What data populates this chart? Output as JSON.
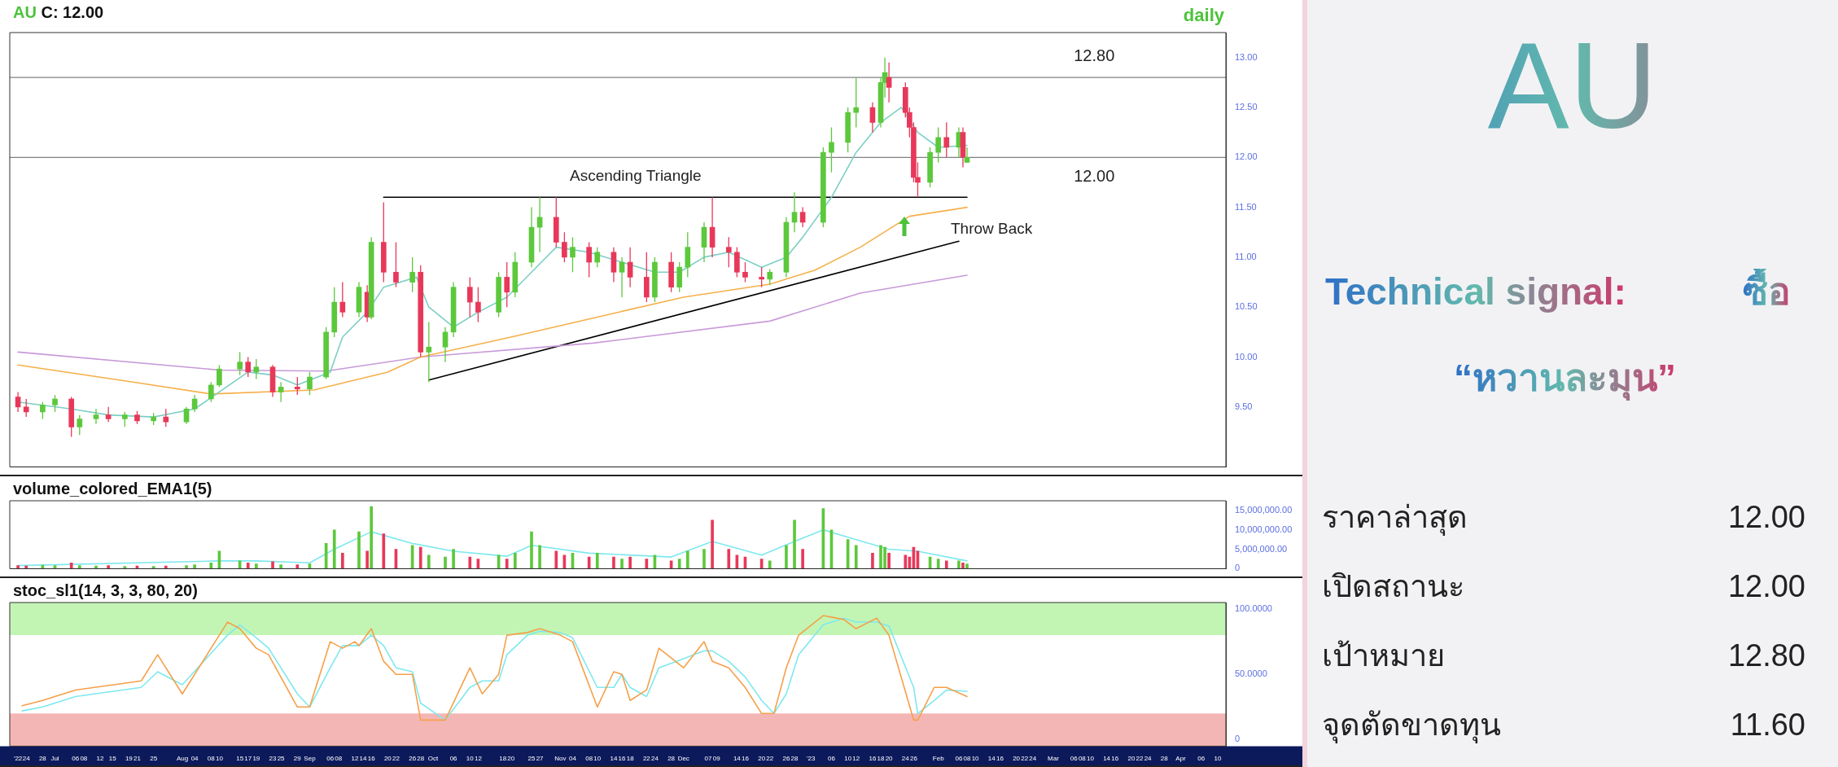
{
  "chart_data": [
    {
      "type": "candlestick",
      "title": "AU C: 12.00",
      "annotations": [
        "daily",
        "Ascending Triangle",
        "Throw Back"
      ],
      "xlim": [
        "2022-06-20",
        "2023-04-12"
      ],
      "ylim": [
        8.9,
        13.25
      ],
      "yticks": [
        {
          "value": 9.5,
          "label": "9.50"
        },
        {
          "value": 10,
          "label": "10.00"
        },
        {
          "value": 10.5,
          "label": "10.50"
        },
        {
          "value": 11,
          "label": "11.00"
        },
        {
          "value": 11.5,
          "label": "11.50"
        },
        {
          "value": 12,
          "label": "12.00"
        },
        {
          "value": 12.5,
          "label": "12.50"
        },
        {
          "value": 13,
          "label": "13.00"
        }
      ],
      "tick_labels": "y",
      "ref_lines": [
        {
          "axis": "y",
          "value": 12.8,
          "label": "12.80",
          "color": "#808080"
        },
        {
          "axis": "y",
          "value": 12,
          "label": "12.00",
          "color": "#808080"
        }
      ],
      "series": [
        {
          "type": "candlestick",
          "x": [
            "2022-06-22",
            "2022-06-24",
            "2022-06-28",
            "2022-07-01",
            "2022-07-05",
            "2022-07-07",
            "2022-07-11",
            "2022-07-14",
            "2022-07-18",
            "2022-07-21",
            "2022-07-25",
            "2022-07-28",
            "2022-08-02",
            "2022-08-04",
            "2022-08-08",
            "2022-08-10",
            "2022-08-15",
            "2022-08-17",
            "2022-08-19",
            "2022-08-23",
            "2022-08-25",
            "2022-08-29",
            "2022-09-01",
            "2022-09-05",
            "2022-09-07",
            "2022-09-09",
            "2022-09-13",
            "2022-09-15",
            "2022-09-16",
            "2022-09-19",
            "2022-09-22",
            "2022-09-26",
            "2022-09-28",
            "2022-09-30",
            "2022-10-04",
            "2022-10-06",
            "2022-10-10",
            "2022-10-12",
            "2022-10-17",
            "2022-10-19",
            "2022-10-21",
            "2022-10-25",
            "2022-10-27",
            "2022-10-31",
            "2022-11-02",
            "2022-11-04",
            "2022-11-08",
            "2022-11-10",
            "2022-11-14",
            "2022-11-16",
            "2022-11-18",
            "2022-11-22",
            "2022-11-24",
            "2022-11-28",
            "2022-11-30",
            "2022-12-02",
            "2022-12-06",
            "2022-12-08",
            "2022-12-12",
            "2022-12-14",
            "2022-12-16",
            "2022-12-20",
            "2022-12-22",
            "2022-12-26",
            "2022-12-28",
            "2022-12-30",
            "2023-01-04",
            "2023-01-06",
            "2023-01-10",
            "2023-01-12",
            "2023-01-16",
            "2023-01-18",
            "2023-01-19",
            "2023-01-20",
            "2023-01-24",
            "2023-01-25",
            "2023-01-26",
            "2023-01-27",
            "2023-01-30",
            "2023-02-01",
            "2023-02-03",
            "2023-02-06",
            "2023-02-07",
            "2023-02-08"
          ],
          "ohlc": [
            [
              9.6,
              9.65,
              9.45,
              9.5
            ],
            [
              9.5,
              9.58,
              9.4,
              9.45
            ],
            [
              9.45,
              9.55,
              9.38,
              9.52
            ],
            [
              9.52,
              9.62,
              9.45,
              9.58
            ],
            [
              9.58,
              9.6,
              9.2,
              9.3
            ],
            [
              9.3,
              9.42,
              9.22,
              9.38
            ],
            [
              9.38,
              9.48,
              9.33,
              9.42
            ],
            [
              9.42,
              9.5,
              9.35,
              9.38
            ],
            [
              9.38,
              9.45,
              9.3,
              9.42
            ],
            [
              9.42,
              9.46,
              9.33,
              9.36
            ],
            [
              9.36,
              9.44,
              9.32,
              9.4
            ],
            [
              9.4,
              9.48,
              9.3,
              9.35
            ],
            [
              9.35,
              9.5,
              9.33,
              9.48
            ],
            [
              9.48,
              9.62,
              9.45,
              9.58
            ],
            [
              9.58,
              9.75,
              9.55,
              9.72
            ],
            [
              9.72,
              9.92,
              9.7,
              9.88
            ],
            [
              9.88,
              10.05,
              9.82,
              9.95
            ],
            [
              9.95,
              10,
              9.8,
              9.85
            ],
            [
              9.85,
              9.98,
              9.78,
              9.9
            ],
            [
              9.9,
              9.92,
              9.6,
              9.65
            ],
            [
              9.65,
              9.75,
              9.55,
              9.7
            ],
            [
              9.7,
              9.8,
              9.62,
              9.68
            ],
            [
              9.68,
              9.85,
              9.62,
              9.8
            ],
            [
              9.8,
              10.3,
              9.78,
              10.25
            ],
            [
              10.25,
              10.7,
              10.2,
              10.55
            ],
            [
              10.55,
              10.75,
              10.4,
              10.45
            ],
            [
              10.45,
              10.75,
              10.4,
              10.7
            ],
            [
              10.65,
              10.72,
              10.35,
              10.4
            ],
            [
              10.4,
              11.2,
              10.38,
              11.15
            ],
            [
              11.15,
              11.55,
              10.75,
              10.85
            ],
            [
              10.85,
              11.15,
              10.7,
              10.75
            ],
            [
              10.75,
              11,
              10.65,
              10.85
            ],
            [
              10.85,
              10.92,
              10,
              10.05
            ],
            [
              10.05,
              10.35,
              9.75,
              10.1
            ],
            [
              10.1,
              10.3,
              9.95,
              10.25
            ],
            [
              10.25,
              10.75,
              10.2,
              10.7
            ],
            [
              10.7,
              10.8,
              10.4,
              10.55
            ],
            [
              10.55,
              10.7,
              10.35,
              10.45
            ],
            [
              10.45,
              10.85,
              10.4,
              10.8
            ],
            [
              10.8,
              10.95,
              10.5,
              10.65
            ],
            [
              10.65,
              11.05,
              10.6,
              10.95
            ],
            [
              10.95,
              11.5,
              10.9,
              11.3
            ],
            [
              11.3,
              11.6,
              11.05,
              11.4
            ],
            [
              11.4,
              11.6,
              11.1,
              11.15
            ],
            [
              11.15,
              11.25,
              10.95,
              11
            ],
            [
              11,
              11.2,
              10.85,
              11.1
            ],
            [
              11.1,
              11.15,
              10.8,
              10.95
            ],
            [
              10.95,
              11.1,
              10.9,
              11.05
            ],
            [
              11.05,
              11.1,
              10.75,
              10.85
            ],
            [
              10.85,
              11,
              10.6,
              10.95
            ],
            [
              10.95,
              11.1,
              10.7,
              10.8
            ],
            [
              10.8,
              11.05,
              10.55,
              10.6
            ],
            [
              10.6,
              11,
              10.55,
              10.95
            ],
            [
              10.95,
              11.05,
              10.65,
              10.7
            ],
            [
              10.7,
              10.95,
              10.65,
              10.9
            ],
            [
              10.9,
              11.25,
              10.8,
              11.1
            ],
            [
              11.1,
              11.35,
              10.95,
              11.3
            ],
            [
              11.3,
              11.6,
              11,
              11.1
            ],
            [
              11.1,
              11.2,
              10.9,
              11.05
            ],
            [
              11.05,
              11.1,
              10.8,
              10.85
            ],
            [
              10.85,
              10.95,
              10.75,
              10.8
            ],
            [
              10.8,
              10.9,
              10.7,
              10.78
            ],
            [
              10.78,
              10.88,
              10.72,
              10.85
            ],
            [
              10.85,
              11.4,
              10.8,
              11.35
            ],
            [
              11.35,
              11.65,
              11.25,
              11.45
            ],
            [
              11.45,
              11.5,
              11.3,
              11.35
            ],
            [
              11.35,
              12.1,
              11.3,
              12.05
            ],
            [
              12.05,
              12.3,
              11.85,
              12.15
            ],
            [
              12.15,
              12.5,
              12.05,
              12.45
            ],
            [
              12.45,
              12.8,
              12.3,
              12.5
            ],
            [
              12.5,
              12.55,
              12.25,
              12.35
            ],
            [
              12.35,
              12.8,
              12.3,
              12.75
            ],
            [
              12.75,
              13,
              12.6,
              12.85
            ],
            [
              12.8,
              12.95,
              12.55,
              12.7
            ],
            [
              12.7,
              12.75,
              12.4,
              12.45
            ],
            [
              12.45,
              12.5,
              12.2,
              12.3
            ],
            [
              12.3,
              12.35,
              11.75,
              11.8
            ],
            [
              11.8,
              11.95,
              11.6,
              11.75
            ],
            [
              11.75,
              12.1,
              11.7,
              12.05
            ],
            [
              12.05,
              12.3,
              11.95,
              12.2
            ],
            [
              12.2,
              12.35,
              12,
              12.1
            ],
            [
              12.1,
              12.3,
              12,
              12.25
            ],
            [
              12.25,
              12.3,
              11.9,
              12
            ],
            [
              11.95,
              12.1,
              11.95,
              12
            ]
          ],
          "colors": [
            "#e8385a",
            "#e8385a",
            "#5cc83c",
            "#5cc83c",
            "#e8385a",
            "#5cc83c",
            "#5cc83c",
            "#e8385a",
            "#5cc83c",
            "#e8385a",
            "#5cc83c",
            "#e8385a",
            "#5cc83c",
            "#5cc83c",
            "#5cc83c",
            "#5cc83c",
            "#5cc83c",
            "#e8385a",
            "#5cc83c",
            "#e8385a",
            "#5cc83c",
            "#e8385a",
            "#5cc83c",
            "#5cc83c",
            "#5cc83c",
            "#e8385a",
            "#5cc83c",
            "#e8385a",
            "#5cc83c",
            "#e8385a",
            "#e8385a",
            "#5cc83c",
            "#e8385a",
            "#5cc83c",
            "#5cc83c",
            "#5cc83c",
            "#e8385a",
            "#e8385a",
            "#5cc83c",
            "#e8385a",
            "#5cc83c",
            "#5cc83c",
            "#5cc83c",
            "#e8385a",
            "#e8385a",
            "#5cc83c",
            "#e8385a",
            "#5cc83c",
            "#e8385a",
            "#5cc83c",
            "#e8385a",
            "#e8385a",
            "#5cc83c",
            "#e8385a",
            "#5cc83c",
            "#5cc83c",
            "#5cc83c",
            "#e8385a",
            "#e8385a",
            "#e8385a",
            "#e8385a",
            "#e8385a",
            "#5cc83c",
            "#5cc83c",
            "#5cc83c",
            "#e8385a",
            "#5cc83c",
            "#5cc83c",
            "#5cc83c",
            "#5cc83c",
            "#e8385a",
            "#5cc83c",
            "#5cc83c",
            "#e8385a",
            "#e8385a",
            "#e8385a",
            "#e8385a",
            "#e8385a",
            "#5cc83c",
            "#5cc83c",
            "#e8385a",
            "#5cc83c",
            "#e8385a",
            "#5cc83c"
          ]
        },
        {
          "type": "line",
          "color": "#7ccfc4",
          "x": [
            "2022-06-22",
            "2022-07-05",
            "2022-07-14",
            "2022-07-25",
            "2022-08-04",
            "2022-08-10",
            "2022-08-17",
            "2022-08-23",
            "2022-08-29",
            "2022-09-06",
            "2022-09-09",
            "2022-09-15",
            "2022-09-19",
            "2022-09-27",
            "2022-09-30",
            "2022-10-06",
            "2022-10-12",
            "2022-10-19",
            "2022-10-25",
            "2022-10-31",
            "2022-11-08",
            "2022-11-16",
            "2022-11-24",
            "2022-11-30",
            "2022-12-06",
            "2022-12-12",
            "2022-12-20",
            "2022-12-26",
            "2022-12-30",
            "2023-01-06",
            "2023-01-12",
            "2023-01-18",
            "2023-01-23",
            "2023-01-27",
            "2023-02-01",
            "2023-02-08"
          ],
          "values": [
            9.55,
            9.48,
            9.42,
            9.4,
            9.48,
            9.65,
            9.85,
            9.82,
            9.72,
            9.85,
            10.2,
            10.45,
            10.7,
            10.8,
            10.5,
            10.3,
            10.45,
            10.6,
            10.85,
            11.1,
            11.05,
            10.95,
            10.85,
            10.85,
            11,
            11.05,
            10.9,
            11,
            11.2,
            11.6,
            12.05,
            12.35,
            12.5,
            12.25,
            12.1,
            12.12
          ]
        },
        {
          "type": "line",
          "color": "#f5b04a",
          "x": [
            "2022-06-22",
            "2022-07-20",
            "2022-08-08",
            "2022-09-02",
            "2022-09-20",
            "2022-09-28",
            "2022-10-20",
            "2022-11-10",
            "2022-12-01",
            "2022-12-22",
            "2023-01-02",
            "2023-01-13",
            "2023-01-25",
            "2023-02-08"
          ],
          "values": [
            9.92,
            9.75,
            9.63,
            9.67,
            9.85,
            10,
            10.2,
            10.4,
            10.6,
            10.73,
            10.87,
            11.1,
            11.41,
            11.5
          ]
        },
        {
          "type": "line",
          "color": "#c89ad8",
          "x": [
            "2022-06-22",
            "2022-08-10",
            "2022-09-05",
            "2022-09-28",
            "2022-11-09",
            "2022-12-22",
            "2023-01-13",
            "2023-02-08"
          ],
          "values": [
            10.05,
            9.87,
            9.86,
            10,
            10.14,
            10.36,
            10.64,
            10.82
          ]
        },
        {
          "type": "line",
          "color": "#000000",
          "x": [
            "2022-09-30",
            "2023-02-06"
          ],
          "values": [
            9.77,
            11.16
          ]
        },
        {
          "type": "line",
          "color": "#000000",
          "x": [
            "2022-09-19",
            "2023-02-08"
          ],
          "values": [
            11.6,
            11.6
          ]
        }
      ]
    },
    {
      "type": "bar",
      "title": "volume_colored_EMA1(5)",
      "xlim": [
        "2022-06-20",
        "2023-04-12"
      ],
      "ylim": [
        0,
        17500000
      ],
      "yticks": [
        0,
        {
          "value": 5000000,
          "label": "5,000,000.00"
        },
        {
          "value": 10000000,
          "label": "10,000,000.00"
        },
        {
          "value": 15000000,
          "label": "15,000,000.00"
        }
      ],
      "tick_labels": "y",
      "series": [
        {
          "x": [
            "2022-06-22",
            "2022-06-24",
            "2022-06-28",
            "2022-07-01",
            "2022-07-05",
            "2022-07-07",
            "2022-07-11",
            "2022-07-14",
            "2022-07-18",
            "2022-07-21",
            "2022-07-25",
            "2022-07-28",
            "2022-08-02",
            "2022-08-04",
            "2022-08-08",
            "2022-08-10",
            "2022-08-15",
            "2022-08-17",
            "2022-08-19",
            "2022-08-23",
            "2022-08-25",
            "2022-08-29",
            "2022-09-01",
            "2022-09-05",
            "2022-09-07",
            "2022-09-09",
            "2022-09-13",
            "2022-09-15",
            "2022-09-16",
            "2022-09-19",
            "2022-09-22",
            "2022-09-26",
            "2022-09-28",
            "2022-09-30",
            "2022-10-04",
            "2022-10-06",
            "2022-10-10",
            "2022-10-12",
            "2022-10-17",
            "2022-10-19",
            "2022-10-21",
            "2022-10-25",
            "2022-10-27",
            "2022-10-31",
            "2022-11-02",
            "2022-11-04",
            "2022-11-08",
            "2022-11-10",
            "2022-11-14",
            "2022-11-16",
            "2022-11-18",
            "2022-11-22",
            "2022-11-24",
            "2022-11-28",
            "2022-11-30",
            "2022-12-02",
            "2022-12-06",
            "2022-12-08",
            "2022-12-12",
            "2022-12-14",
            "2022-12-16",
            "2022-12-20",
            "2022-12-22",
            "2022-12-26",
            "2022-12-28",
            "2022-12-30",
            "2023-01-04",
            "2023-01-06",
            "2023-01-10",
            "2023-01-12",
            "2023-01-16",
            "2023-01-18",
            "2023-01-19",
            "2023-01-20",
            "2023-01-24",
            "2023-01-25",
            "2023-01-26",
            "2023-01-27",
            "2023-01-30",
            "2023-02-01",
            "2023-02-03",
            "2023-02-06",
            "2023-02-07",
            "2023-02-08"
          ],
          "values": [
            800000,
            700000,
            900000,
            800000,
            1500000,
            800000,
            700000,
            800000,
            600000,
            700000,
            600000,
            700000,
            800000,
            1000000,
            1500000,
            4500000,
            2000000,
            1500000,
            1200000,
            1800000,
            1000000,
            1000000,
            1200000,
            6500000,
            10000000,
            4000000,
            9500000,
            4500000,
            16000000,
            9000000,
            5000000,
            6000000,
            5500000,
            3500000,
            3000000,
            5000000,
            3000000,
            2500000,
            3500000,
            2500000,
            4000000,
            9500000,
            6000000,
            4500000,
            3500000,
            4000000,
            3000000,
            4000000,
            3000000,
            2500000,
            3000000,
            2500000,
            3500000,
            2000000,
            2500000,
            4500000,
            5000000,
            12500000,
            5000000,
            3500000,
            3000000,
            2500000,
            2000000,
            6000000,
            12500000,
            5000000,
            15500000,
            10000000,
            7500000,
            6000000,
            4000000,
            6000000,
            5500000,
            4000000,
            3500000,
            3000000,
            5500000,
            4500000,
            3000000,
            2500000,
            2000000,
            2000000,
            1500000,
            1200000
          ],
          "colors": [
            "#e8385a",
            "#e8385a",
            "#5cc83c",
            "#5cc83c",
            "#e8385a",
            "#5cc83c",
            "#5cc83c",
            "#e8385a",
            "#5cc83c",
            "#e8385a",
            "#5cc83c",
            "#e8385a",
            "#5cc83c",
            "#5cc83c",
            "#5cc83c",
            "#5cc83c",
            "#5cc83c",
            "#e8385a",
            "#5cc83c",
            "#e8385a",
            "#5cc83c",
            "#e8385a",
            "#5cc83c",
            "#5cc83c",
            "#5cc83c",
            "#e8385a",
            "#5cc83c",
            "#e8385a",
            "#5cc83c",
            "#e8385a",
            "#e8385a",
            "#5cc83c",
            "#e8385a",
            "#5cc83c",
            "#5cc83c",
            "#5cc83c",
            "#e8385a",
            "#e8385a",
            "#5cc83c",
            "#e8385a",
            "#5cc83c",
            "#5cc83c",
            "#5cc83c",
            "#e8385a",
            "#e8385a",
            "#5cc83c",
            "#e8385a",
            "#5cc83c",
            "#e8385a",
            "#5cc83c",
            "#e8385a",
            "#e8385a",
            "#5cc83c",
            "#e8385a",
            "#5cc83c",
            "#5cc83c",
            "#5cc83c",
            "#e8385a",
            "#e8385a",
            "#e8385a",
            "#e8385a",
            "#e8385a",
            "#5cc83c",
            "#5cc83c",
            "#5cc83c",
            "#e8385a",
            "#5cc83c",
            "#5cc83c",
            "#5cc83c",
            "#5cc83c",
            "#e8385a",
            "#5cc83c",
            "#5cc83c",
            "#e8385a",
            "#e8385a",
            "#e8385a",
            "#e8385a",
            "#e8385a",
            "#5cc83c",
            "#5cc83c",
            "#e8385a",
            "#5cc83c",
            "#e8385a",
            "#5cc83c"
          ]
        },
        {
          "type": "line",
          "color": "#7ee8ee",
          "x": [
            "2022-06-22",
            "2022-08-10",
            "2022-08-19",
            "2022-09-01",
            "2022-09-07",
            "2022-09-16",
            "2022-09-26",
            "2022-10-06",
            "2022-10-19",
            "2022-10-25",
            "2022-11-08",
            "2022-11-28",
            "2022-12-08",
            "2022-12-20",
            "2022-12-28",
            "2023-01-04",
            "2023-01-12",
            "2023-01-20",
            "2023-01-27",
            "2023-02-08"
          ],
          "values": [
            800000,
            2000000,
            2000000,
            1500000,
            5000000,
            9500000,
            6500000,
            4500000,
            3200000,
            6000000,
            4000000,
            3000000,
            7000000,
            3500000,
            7000000,
            10000000,
            7500000,
            5000000,
            4500000,
            2000000
          ]
        }
      ]
    },
    {
      "type": "line",
      "title": "stoc_sl1(14, 3, 3, 80, 20)",
      "xlim": [
        "2022-06-20",
        "2023-04-12"
      ],
      "ylim": [
        -5,
        105
      ],
      "yticks": [
        0,
        {
          "value": 50,
          "label": "50.0000"
        },
        {
          "value": 100,
          "label": "100.0000"
        }
      ],
      "xticks": [
        {
          "value": "2022-06-22",
          "label": "'22"
        },
        {
          "value": "2022-06-24",
          "label": "24"
        },
        {
          "value": "2022-06-28",
          "label": "28"
        },
        {
          "value": "2022-07-01",
          "label": "Jul"
        },
        {
          "value": "2022-07-06",
          "label": "06"
        },
        {
          "value": "2022-07-08",
          "label": "08"
        },
        {
          "value": "2022-07-12",
          "label": "12"
        },
        {
          "value": "2022-07-15",
          "label": "15"
        },
        {
          "value": "2022-07-19",
          "label": "19"
        },
        {
          "value": "2022-07-21",
          "label": "21"
        },
        {
          "value": "2022-07-25",
          "label": "25"
        },
        {
          "value": "2022-08-01",
          "label": "Aug"
        },
        {
          "value": "2022-08-04",
          "label": "04"
        },
        {
          "value": "2022-08-08",
          "label": "08"
        },
        {
          "value": "2022-08-10",
          "label": "10"
        },
        {
          "value": "2022-08-15",
          "label": "15"
        },
        {
          "value": "2022-08-17",
          "label": "17"
        },
        {
          "value": "2022-08-19",
          "label": "19"
        },
        {
          "value": "2022-08-23",
          "label": "23"
        },
        {
          "value": "2022-08-25",
          "label": "25"
        },
        {
          "value": "2022-08-29",
          "label": "29"
        },
        {
          "value": "2022-09-01",
          "label": "Sep"
        },
        {
          "value": "2022-09-06",
          "label": "06"
        },
        {
          "value": "2022-09-08",
          "label": "08"
        },
        {
          "value": "2022-09-12",
          "label": "12"
        },
        {
          "value": "2022-09-14",
          "label": "14"
        },
        {
          "value": "2022-09-16",
          "label": "16"
        },
        {
          "value": "2022-09-20",
          "label": "20"
        },
        {
          "value": "2022-09-22",
          "label": "22"
        },
        {
          "value": "2022-09-26",
          "label": "26"
        },
        {
          "value": "2022-09-28",
          "label": "28"
        },
        {
          "value": "2022-10-01",
          "label": "Oct"
        },
        {
          "value": "2022-10-06",
          "label": "06"
        },
        {
          "value": "2022-10-10",
          "label": "10"
        },
        {
          "value": "2022-10-12",
          "label": "12"
        },
        {
          "value": "2022-10-18",
          "label": "18"
        },
        {
          "value": "2022-10-20",
          "label": "20"
        },
        {
          "value": "2022-10-25",
          "label": "25"
        },
        {
          "value": "2022-10-27",
          "label": "27"
        },
        {
          "value": "2022-11-01",
          "label": "Nov"
        },
        {
          "value": "2022-11-04",
          "label": "04"
        },
        {
          "value": "2022-11-08",
          "label": "08"
        },
        {
          "value": "2022-11-10",
          "label": "10"
        },
        {
          "value": "2022-11-14",
          "label": "14"
        },
        {
          "value": "2022-11-16",
          "label": "16"
        },
        {
          "value": "2022-11-18",
          "label": "18"
        },
        {
          "value": "2022-11-22",
          "label": "22"
        },
        {
          "value": "2022-11-24",
          "label": "24"
        },
        {
          "value": "2022-11-28",
          "label": "28"
        },
        {
          "value": "2022-12-01",
          "label": "Dec"
        },
        {
          "value": "2022-12-07",
          "label": "07"
        },
        {
          "value": "2022-12-09",
          "label": "09"
        },
        {
          "value": "2022-12-14",
          "label": "14"
        },
        {
          "value": "2022-12-16",
          "label": "16"
        },
        {
          "value": "2022-12-20",
          "label": "20"
        },
        {
          "value": "2022-12-22",
          "label": "22"
        },
        {
          "value": "2022-12-26",
          "label": "26"
        },
        {
          "value": "2022-12-28",
          "label": "28"
        },
        {
          "value": "2023-01-01",
          "label": "'23"
        },
        {
          "value": "2023-01-06",
          "label": "06"
        },
        {
          "value": "2023-01-10",
          "label": "10"
        },
        {
          "value": "2023-01-12",
          "label": "12"
        },
        {
          "value": "2023-01-16",
          "label": "16"
        },
        {
          "value": "2023-01-18",
          "label": "18"
        },
        {
          "value": "2023-01-20",
          "label": "20"
        },
        {
          "value": "2023-01-24",
          "label": "24"
        },
        {
          "value": "2023-01-26",
          "label": "26"
        },
        {
          "value": "2023-02-01",
          "label": "Feb"
        },
        {
          "value": "2023-02-06",
          "label": "06"
        },
        {
          "value": "2023-02-08",
          "label": "08"
        },
        {
          "value": "2023-02-10",
          "label": "10"
        },
        {
          "value": "2023-02-14",
          "label": "14"
        },
        {
          "value": "2023-02-16",
          "label": "16"
        },
        {
          "value": "2023-02-20",
          "label": "20"
        },
        {
          "value": "2023-02-22",
          "label": "22"
        },
        {
          "value": "2023-02-24",
          "label": "24"
        },
        {
          "value": "2023-03-01",
          "label": "Mar"
        },
        {
          "value": "2023-03-06",
          "label": "06"
        },
        {
          "value": "2023-03-08",
          "label": "08"
        },
        {
          "value": "2023-03-10",
          "label": "10"
        },
        {
          "value": "2023-03-14",
          "label": "14"
        },
        {
          "value": "2023-03-16",
          "label": "16"
        },
        {
          "value": "2023-03-20",
          "label": "20"
        },
        {
          "value": "2023-03-22",
          "label": "22"
        },
        {
          "value": "2023-03-24",
          "label": "24"
        },
        {
          "value": "2023-03-28",
          "label": "28"
        },
        {
          "value": "2023-04-01",
          "label": "Apr"
        },
        {
          "value": "2023-04-06",
          "label": "06"
        },
        {
          "value": "2023-04-10",
          "label": "10"
        }
      ],
      "bands": [
        {
          "axis": "y",
          "from": 80,
          "to": 105,
          "color": "#c2f5b4"
        },
        {
          "axis": "y",
          "from": -5,
          "to": 20,
          "color": "#f4b6b4"
        }
      ],
      "x": [
        "2022-06-23",
        "2022-06-28",
        "2022-07-06",
        "2022-07-22",
        "2022-07-26",
        "2022-08-01",
        "2022-08-12",
        "2022-08-15",
        "2022-08-19",
        "2022-08-22",
        "2022-08-29",
        "2022-09-01",
        "2022-09-06",
        "2022-09-09",
        "2022-09-12",
        "2022-09-13",
        "2022-09-16",
        "2022-09-19",
        "2022-09-22",
        "2022-09-26",
        "2022-09-28",
        "2022-10-04",
        "2022-10-10",
        "2022-10-13",
        "2022-10-17",
        "2022-10-19",
        "2022-10-24",
        "2022-10-27",
        "2022-11-01",
        "2022-11-04",
        "2022-11-10",
        "2022-11-14",
        "2022-11-16",
        "2022-11-18",
        "2022-11-22",
        "2022-11-25",
        "2022-12-01",
        "2022-12-06",
        "2022-12-08",
        "2022-12-12",
        "2022-12-16",
        "2022-12-20",
        "2022-12-23",
        "2022-12-26",
        "2022-12-29",
        "2023-01-04",
        "2023-01-09",
        "2023-01-12",
        "2023-01-17",
        "2023-01-20",
        "2023-01-26",
        "2023-01-27",
        "2023-01-31",
        "2023-02-03",
        "2023-02-08"
      ],
      "series": [
        {
          "color": "#f5a04a",
          "values": [
            26,
            30,
            38,
            45,
            65,
            35,
            90,
            85,
            70,
            65,
            25,
            25,
            75,
            70,
            75,
            72,
            85,
            60,
            50,
            50,
            15,
            15,
            55,
            35,
            50,
            80,
            82,
            85,
            80,
            75,
            25,
            52,
            50,
            30,
            38,
            70,
            55,
            75,
            60,
            55,
            40,
            20,
            20,
            55,
            80,
            95,
            92,
            85,
            93,
            80,
            15,
            15,
            40,
            40,
            33
          ]
        },
        {
          "color": "#7ee8ee",
          "values": [
            22,
            25,
            33,
            40,
            52,
            42,
            80,
            88,
            78,
            70,
            35,
            25,
            55,
            72,
            72,
            72,
            80,
            72,
            55,
            52,
            28,
            15,
            40,
            45,
            45,
            65,
            80,
            83,
            82,
            78,
            40,
            40,
            50,
            40,
            33,
            55,
            62,
            68,
            68,
            60,
            48,
            30,
            20,
            35,
            65,
            88,
            93,
            90,
            90,
            87,
            40,
            20,
            30,
            38,
            37
          ]
        }
      ]
    },
    {
      "type": "other",
      "title": "AU",
      "annotations": [
        "Technical signal:",
        "ซื้อ",
        "“หวานละมุน”",
        "ราคาล่าสุด",
        "12.00",
        "เปิดสถานะ",
        "12.00",
        "เป้าหมาย",
        "12.80",
        "จุดตัดขาดทุน",
        "11.60"
      ]
    }
  ]
}
